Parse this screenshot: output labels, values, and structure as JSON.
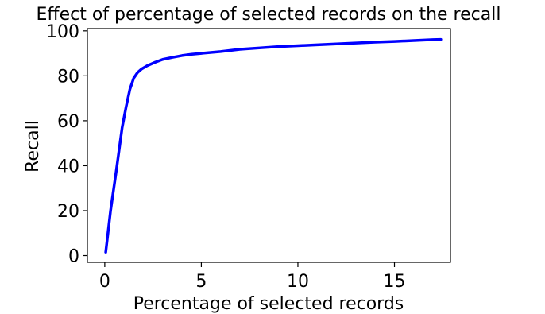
{
  "chart_data": {
    "type": "line",
    "title": "Effect of percentage of selected records on the recall",
    "xlabel": "Percentage of selected records",
    "ylabel": "Recall",
    "xlim": [
      -0.9,
      17.9
    ],
    "ylim": [
      -3,
      101
    ],
    "xticks": [
      0,
      5,
      10,
      15
    ],
    "yticks": [
      0,
      20,
      40,
      60,
      80,
      100
    ],
    "grid": false,
    "series": [
      {
        "color": "#0000ff",
        "x": [
          0.05,
          0.3,
          0.6,
          0.9,
          1.1,
          1.3,
          1.5,
          1.7,
          1.9,
          2.2,
          2.6,
          3.0,
          3.5,
          4.0,
          4.5,
          5.0,
          6.0,
          7.0,
          8.0,
          9.0,
          10.0,
          11.0,
          12.0,
          13.0,
          14.0,
          15.0,
          16.0,
          17.0,
          17.4
        ],
        "y": [
          1.5,
          20,
          38,
          57,
          66,
          74,
          79,
          81.5,
          83,
          84.5,
          86,
          87.3,
          88.2,
          89.0,
          89.6,
          90.0,
          90.8,
          91.8,
          92.4,
          93.0,
          93.4,
          93.8,
          94.2,
          94.6,
          95.0,
          95.3,
          95.7,
          96.1,
          96.2
        ]
      }
    ]
  }
}
